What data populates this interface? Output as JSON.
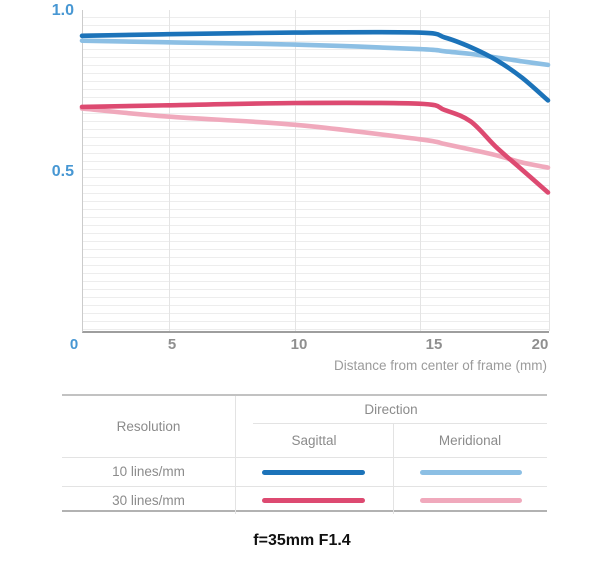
{
  "chart": {
    "y_tick_labels": [
      "1.0",
      "0.5"
    ],
    "x_tick_labels": [
      "0",
      "5",
      "10",
      "15",
      "20"
    ],
    "x_axis_caption": "Distance from center of frame (mm)"
  },
  "legend_table": {
    "resolution_header": "Resolution",
    "direction_header": "Direction",
    "columns": [
      "Sagittal",
      "Meridional"
    ],
    "rows": [
      {
        "label": "10 lines/mm",
        "sagittal_color": "#1c73b9",
        "meridional_color": "#8cbfe4"
      },
      {
        "label": "30 lines/mm",
        "sagittal_color": "#dd4a71",
        "meridional_color": "#f0a9bc"
      }
    ]
  },
  "title": "f=35mm F1.4",
  "colors": {
    "accent_axis_label": "#4797d3",
    "gray_axis_label": "#8f8f8f",
    "sagittal_10": "#1c73b9",
    "meridional_10": "#8cbfe4",
    "sagittal_30": "#dd4a71",
    "meridional_30": "#f0a9bc"
  },
  "chart_data": {
    "type": "line",
    "title": "f=35mm F1.4",
    "xlabel": "Distance from center of frame (mm)",
    "ylabel": "",
    "xlim": [
      0,
      20
    ],
    "ylim": [
      0,
      1.0
    ],
    "x_ticks": [
      0,
      5,
      10,
      15,
      20
    ],
    "y_ticks": [
      0.5,
      1.0
    ],
    "grid": true,
    "legend_position": "table-below",
    "x": [
      0,
      5,
      10,
      15,
      16,
      17,
      18,
      19,
      20
    ],
    "series": [
      {
        "name": "10 lines/mm Sagittal",
        "color": "#1c73b9",
        "values": [
          0.92,
          0.925,
          0.93,
          0.93,
          0.915,
          0.885,
          0.845,
          0.79,
          0.72
        ]
      },
      {
        "name": "10 lines/mm Meridional",
        "color": "#8cbfe4",
        "values": [
          0.905,
          0.9,
          0.893,
          0.879,
          0.872,
          0.864,
          0.853,
          0.841,
          0.83
        ]
      },
      {
        "name": "30 lines/mm Sagittal",
        "color": "#dd4a71",
        "values": [
          0.7,
          0.705,
          0.712,
          0.71,
          0.69,
          0.655,
          0.575,
          0.505,
          0.435
        ]
      },
      {
        "name": "30 lines/mm Meridional",
        "color": "#f0a9bc",
        "values": [
          0.695,
          0.67,
          0.645,
          0.6,
          0.585,
          0.568,
          0.55,
          0.528,
          0.512
        ]
      }
    ]
  }
}
